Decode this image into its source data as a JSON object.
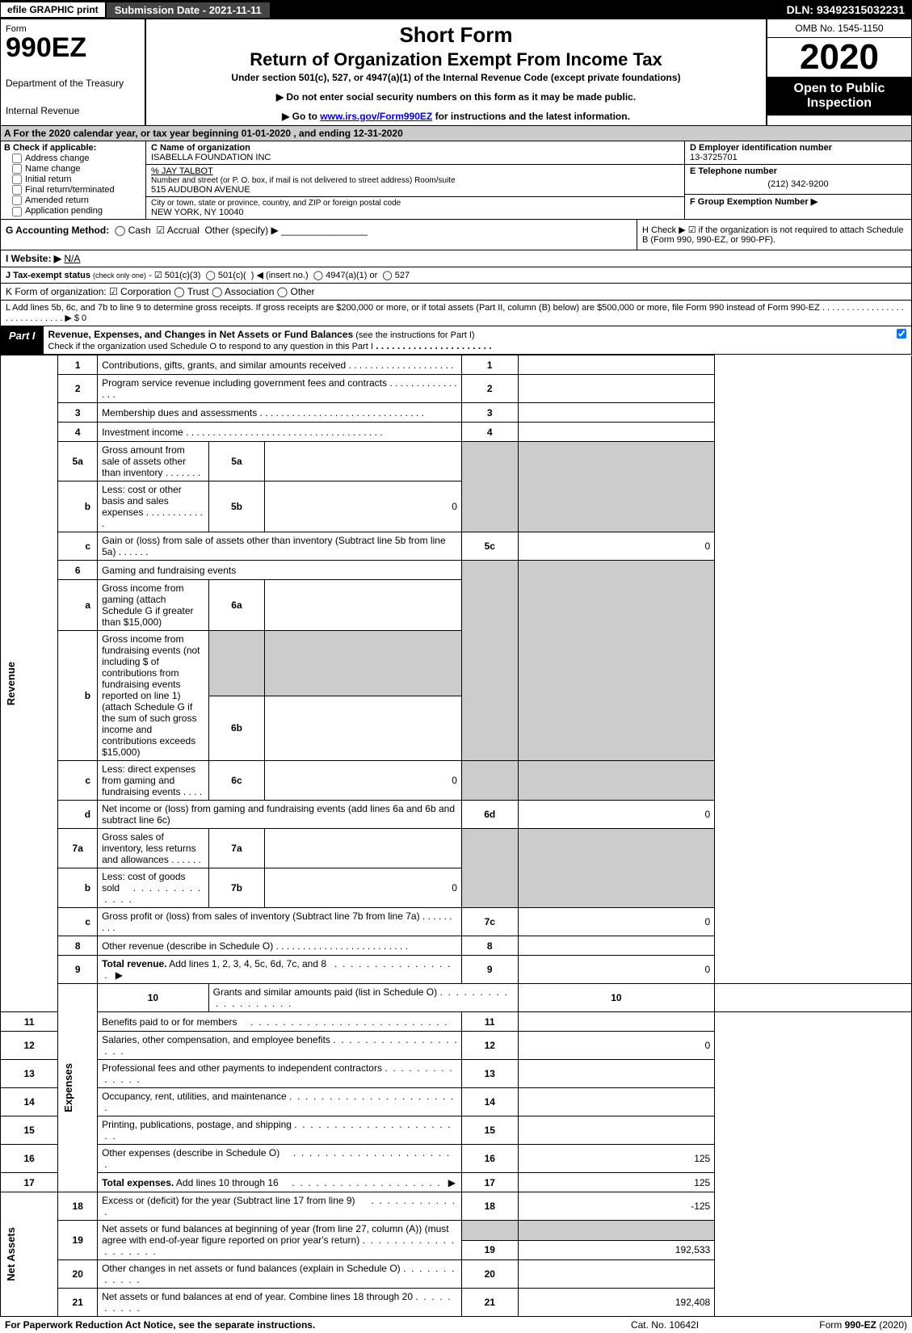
{
  "topbar": {
    "efile": "efile GRAPHIC print",
    "submission_label": "Submission Date - 2021-11-11",
    "dln": "DLN: 93492315032231"
  },
  "header": {
    "form_word": "Form",
    "form_no": "990EZ",
    "dept1": "Department of the Treasury",
    "dept2": "Internal Revenue",
    "title1": "Short Form",
    "title2": "Return of Organization Exempt From Income Tax",
    "subtitle": "Under section 501(c), 527, or 4947(a)(1) of the Internal Revenue Code (except private foundations)",
    "note1": "▶ Do not enter social security numbers on this form as it may be made public.",
    "note2_pre": "▶ Go to ",
    "note2_link": "www.irs.gov/Form990EZ",
    "note2_post": " for instructions and the latest information.",
    "omb": "OMB No. 1545-1150",
    "year": "2020",
    "open": "Open to Public Inspection"
  },
  "rowA": "A  For the 2020 calendar year, or tax year beginning 01-01-2020 , and ending 12-31-2020",
  "boxB": {
    "label": "B  Check if applicable:",
    "opts": [
      "Address change",
      "Name change",
      "Initial return",
      "Final return/terminated",
      "Amended return",
      "Application pending"
    ]
  },
  "boxC": {
    "name_lbl": "C Name of organization",
    "name": "ISABELLA FOUNDATION INC",
    "careof": "% JAY TALBOT",
    "street_lbl": "Number and street (or P. O. box, if mail is not delivered to street address)        Room/suite",
    "street": "515 AUDUBON AVENUE",
    "city_lbl": "City or town, state or province, country, and ZIP or foreign postal code",
    "city": "NEW YORK, NY  10040"
  },
  "boxD": {
    "ein_lbl": "D Employer identification number",
    "ein": "13-3725701",
    "tel_lbl": "E Telephone number",
    "tel": "(212) 342-9200",
    "grp_lbl": "F Group Exemption Number  ▶"
  },
  "rowG": {
    "label": "G Accounting Method:",
    "cash": "Cash",
    "accrual": "Accrual",
    "other": "Other (specify) ▶"
  },
  "rowH": "H  Check ▶ ☑ if the organization is not required to attach Schedule B (Form 990, 990-EZ, or 990-PF).",
  "rowI": {
    "label": "I Website: ▶",
    "val": "N/A"
  },
  "rowJ": "J Tax-exempt status (check only one) - ☑ 501(c)(3)  ◯ 501(c)(  ) ◀ (insert no.)  ◯ 4947(a)(1) or  ◯ 527",
  "rowK": "K Form of organization:  ☑ Corporation  ◯ Trust  ◯ Association  ◯ Other",
  "rowL": "L Add lines 5b, 6c, and 7b to line 9 to determine gross receipts. If gross receipts are $200,000 or more, or if total assets (Part II, column (B) below) are $500,000 or more, file Form 990 instead of Form 990-EZ  .  .  .  .  .  .  .  .  .  .  .  .  .  .  .  .  .  .  .  .  .  .  .  .  .  .  .  .  .  ▶ $ 0",
  "part1": {
    "tag": "Part I",
    "title": "Revenue, Expenses, and Changes in Net Assets or Fund Balances",
    "note": " (see the instructions for Part I)",
    "check_line": "Check if the organization used Schedule O to respond to any question in this Part I"
  },
  "sidelabels": {
    "rev": "Revenue",
    "exp": "Expenses",
    "na": "Net Assets"
  },
  "lines": {
    "l1": "Contributions, gifts, grants, and similar amounts received",
    "l2": "Program service revenue including government fees and contracts",
    "l3": "Membership dues and assessments",
    "l4": "Investment income",
    "l5a": "Gross amount from sale of assets other than inventory",
    "l5b": "Less: cost or other basis and sales expenses",
    "l5c": "Gain or (loss) from sale of assets other than inventory (Subtract line 5b from line 5a)",
    "l6": "Gaming and fundraising events",
    "l6a": "Gross income from gaming (attach Schedule G if greater than $15,000)",
    "l6b": "Gross income from fundraising events (not including $                 of contributions from fundraising events reported on line 1) (attach Schedule G if the sum of such gross income and contributions exceeds $15,000)",
    "l6c": "Less: direct expenses from gaming and fundraising events",
    "l6d": "Net income or (loss) from gaming and fundraising events (add lines 6a and 6b and subtract line 6c)",
    "l7a": "Gross sales of inventory, less returns and allowances",
    "l7b": "Less: cost of goods sold",
    "l7c": "Gross profit or (loss) from sales of inventory (Subtract line 7b from line 7a)",
    "l8": "Other revenue (describe in Schedule O)",
    "l9": "Total revenue. Add lines 1, 2, 3, 4, 5c, 6d, 7c, and 8",
    "l10": "Grants and similar amounts paid (list in Schedule O)",
    "l11": "Benefits paid to or for members",
    "l12": "Salaries, other compensation, and employee benefits",
    "l13": "Professional fees and other payments to independent contractors",
    "l14": "Occupancy, rent, utilities, and maintenance",
    "l15": "Printing, publications, postage, and shipping",
    "l16": "Other expenses (describe in Schedule O)",
    "l17": "Total expenses. Add lines 10 through 16",
    "l18": "Excess or (deficit) for the year (Subtract line 17 from line 9)",
    "l19": "Net assets or fund balances at beginning of year (from line 27, column (A)) (must agree with end-of-year figure reported on prior year's return)",
    "l20": "Other changes in net assets or fund balances (explain in Schedule O)",
    "l21": "Net assets or fund balances at end of year. Combine lines 18 through 20"
  },
  "values": {
    "v5b": "0",
    "v5c": "0",
    "v6c": "0",
    "v6d": "0",
    "v7b": "0",
    "v7c": "0",
    "v9": "0",
    "v12": "0",
    "v16": "125",
    "v17": "125",
    "v18": "-125",
    "v19": "192,533",
    "v21": "192,408"
  },
  "foot": {
    "left": "For Paperwork Reduction Act Notice, see the separate instructions.",
    "mid": "Cat. No. 10642I",
    "right_pre": "Form ",
    "right_b": "990-EZ",
    "right_post": " (2020)"
  }
}
